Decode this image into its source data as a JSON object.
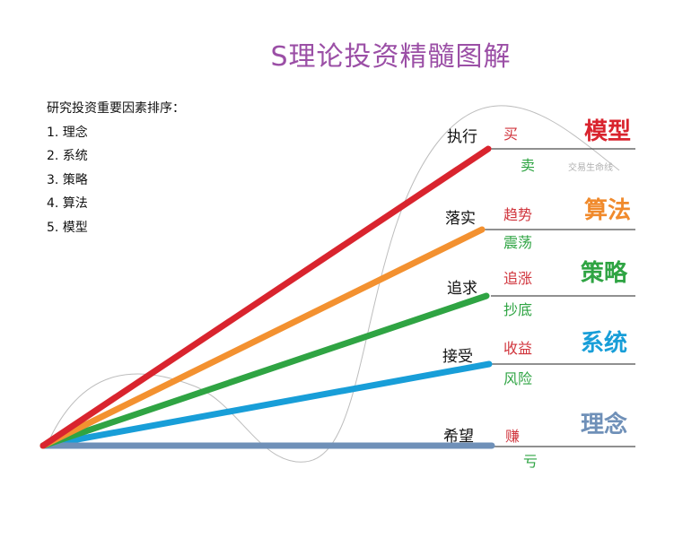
{
  "title": "S理论投资精髓图解",
  "ranking": {
    "heading": "研究投资重要因素排序：",
    "items": [
      "1. 理念",
      "2. 系统",
      "3. 策略",
      "4. 算法",
      "5. 模型"
    ]
  },
  "lifeline_label": "交易生命线",
  "rows": [
    {
      "stage": "执行",
      "up": "买",
      "down": "卖",
      "category": "模型",
      "color": "#d9242e",
      "category_color": "#d9242e"
    },
    {
      "stage": "落实",
      "up": "趋势",
      "down": "震荡",
      "category": "算法",
      "color": "#f39130",
      "category_color": "#f08a2c"
    },
    {
      "stage": "追求",
      "up": "追涨",
      "down": "抄底",
      "category": "策略",
      "color": "#2fa443",
      "category_color": "#2fa443"
    },
    {
      "stage": "接受",
      "up": "收益",
      "down": "风险",
      "category": "系统",
      "color": "#189ed8",
      "category_color": "#189ed8"
    },
    {
      "stage": "希望",
      "up": "赚",
      "down": "亏",
      "category": "理念",
      "color": "#6f90b8",
      "category_color": "#6f90b8"
    }
  ],
  "up_color": "#d0343c",
  "down_color": "#2fa443"
}
